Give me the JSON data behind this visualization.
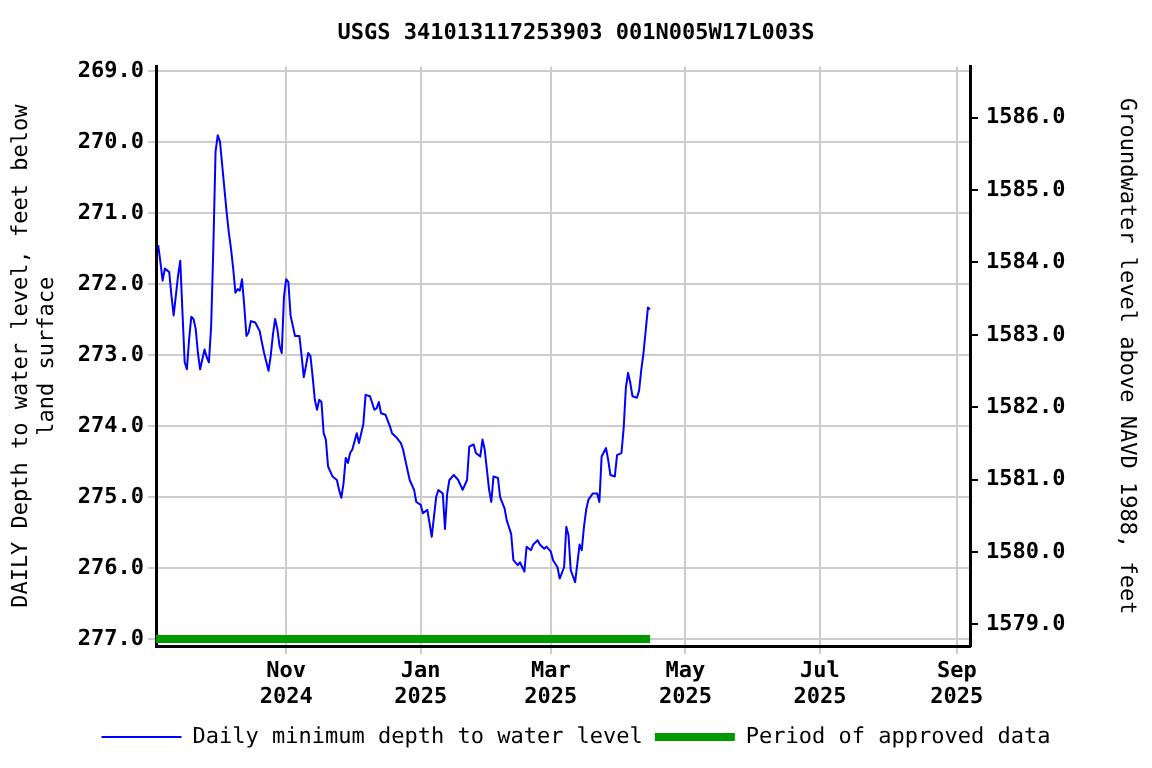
{
  "chart_data": {
    "type": "line",
    "title": "USGS 341013117253903 001N005W17L003S",
    "ylabel": "DAILY Depth to water level, feet below land surface",
    "y2label": "Groundwater level above NAVD 1988, feet",
    "xlim": [
      "2024-09-03",
      "2025-09-07"
    ],
    "xticks": [
      {
        "value": "2024-11-01",
        "label": "Nov 2024"
      },
      {
        "value": "2025-01-01",
        "label": "Jan 2025"
      },
      {
        "value": "2025-03-01",
        "label": "Mar 2025"
      },
      {
        "value": "2025-05-01",
        "label": "May 2025"
      },
      {
        "value": "2025-07-01",
        "label": "Jul 2025"
      },
      {
        "value": "2025-09-01",
        "label": "Sep 2025"
      }
    ],
    "ylim": [
      277.1,
      268.93
    ],
    "yticks": [
      {
        "value": 269,
        "label": "269.0"
      },
      {
        "value": 270,
        "label": "270.0"
      },
      {
        "value": 271,
        "label": "271.0"
      },
      {
        "value": 272,
        "label": "272.0"
      },
      {
        "value": 273,
        "label": "273.0"
      },
      {
        "value": 274,
        "label": "274.0"
      },
      {
        "value": 275,
        "label": "275.0"
      },
      {
        "value": 276,
        "label": "276.0"
      },
      {
        "value": 277,
        "label": "277.0"
      }
    ],
    "y2lim": [
      1578.7,
      1586.71
    ],
    "y2ticks": [
      {
        "value": 1579,
        "label": "1579.0"
      },
      {
        "value": 1580,
        "label": "1580.0"
      },
      {
        "value": 1581,
        "label": "1581.0"
      },
      {
        "value": 1582,
        "label": "1582.0"
      },
      {
        "value": 1583,
        "label": "1583.0"
      },
      {
        "value": 1584,
        "label": "1584.0"
      },
      {
        "value": 1585,
        "label": "1585.0"
      },
      {
        "value": 1586,
        "label": "1586.0"
      }
    ],
    "grid": true,
    "legend": "bottom",
    "marker": "none",
    "line_style": "solid",
    "series": [
      {
        "name": "Daily minimum depth to water level",
        "color": "#0000ff",
        "x": [
          "2024-09-04",
          "2024-09-05",
          "2024-09-06",
          "2024-09-07",
          "2024-09-09",
          "2024-09-10",
          "2024-09-11",
          "2024-09-12",
          "2024-09-13",
          "2024-09-14",
          "2024-09-15",
          "2024-09-16",
          "2024-09-17",
          "2024-09-18",
          "2024-09-19",
          "2024-09-20",
          "2024-09-21",
          "2024-09-22",
          "2024-09-23",
          "2024-09-24",
          "2024-09-25",
          "2024-09-26",
          "2024-09-27",
          "2024-09-28",
          "2024-09-29",
          "2024-09-30",
          "2024-10-01",
          "2024-10-02",
          "2024-10-03",
          "2024-10-04",
          "2024-10-05",
          "2024-10-06",
          "2024-10-07",
          "2024-10-08",
          "2024-10-09",
          "2024-10-10",
          "2024-10-11",
          "2024-10-12",
          "2024-10-13",
          "2024-10-14",
          "2024-10-15",
          "2024-10-16",
          "2024-10-18",
          "2024-10-20",
          "2024-10-21",
          "2024-10-22",
          "2024-10-24",
          "2024-10-25",
          "2024-10-26",
          "2024-10-27",
          "2024-10-28",
          "2024-10-29",
          "2024-10-30",
          "2024-10-31",
          "2024-11-01",
          "2024-11-02",
          "2024-11-03",
          "2024-11-05",
          "2024-11-07",
          "2024-11-08",
          "2024-11-09",
          "2024-11-10",
          "2024-11-11",
          "2024-11-12",
          "2024-11-13",
          "2024-11-14",
          "2024-11-15",
          "2024-11-16",
          "2024-11-17",
          "2024-11-18",
          "2024-11-19",
          "2024-11-20",
          "2024-11-22",
          "2024-11-24",
          "2024-11-25",
          "2024-11-26",
          "2024-11-27",
          "2024-11-28",
          "2024-11-29",
          "2024-11-30",
          "2024-12-01",
          "2024-12-03",
          "2024-12-04",
          "2024-12-06",
          "2024-12-07",
          "2024-12-09",
          "2024-12-11",
          "2024-12-12",
          "2024-12-13",
          "2024-12-14",
          "2024-12-16",
          "2024-12-18",
          "2024-12-19",
          "2024-12-21",
          "2024-12-23",
          "2024-12-24",
          "2024-12-26",
          "2024-12-27",
          "2024-12-29",
          "2024-12-30",
          "2025-01-01",
          "2025-01-02",
          "2025-01-04",
          "2025-01-05",
          "2025-01-06",
          "2025-01-08",
          "2025-01-09",
          "2025-01-11",
          "2025-01-12",
          "2025-01-13",
          "2025-01-14",
          "2025-01-16",
          "2025-01-18",
          "2025-01-20",
          "2025-01-22",
          "2025-01-23",
          "2025-01-25",
          "2025-01-26",
          "2025-01-28",
          "2025-01-29",
          "2025-01-30",
          "2025-02-01",
          "2025-02-02",
          "2025-02-03",
          "2025-02-05",
          "2025-02-06",
          "2025-02-08",
          "2025-02-09",
          "2025-02-11",
          "2025-02-12",
          "2025-02-14",
          "2025-02-15",
          "2025-02-17",
          "2025-02-18",
          "2025-02-20",
          "2025-02-21",
          "2025-02-23",
          "2025-02-24",
          "2025-02-26",
          "2025-02-27",
          "2025-03-01",
          "2025-03-02",
          "2025-03-04",
          "2025-03-05",
          "2025-03-07",
          "2025-03-08",
          "2025-03-09",
          "2025-03-10",
          "2025-03-12",
          "2025-03-13",
          "2025-03-14",
          "2025-03-15",
          "2025-03-16",
          "2025-03-17",
          "2025-03-18",
          "2025-03-20",
          "2025-03-22",
          "2025-03-23",
          "2025-03-24",
          "2025-03-26",
          "2025-03-27",
          "2025-03-28",
          "2025-03-30",
          "2025-03-31",
          "2025-04-02",
          "2025-04-03",
          "2025-04-04",
          "2025-04-05",
          "2025-04-06",
          "2025-04-07",
          "2025-04-09",
          "2025-04-10",
          "2025-04-11",
          "2025-04-12",
          "2025-04-14",
          "2025-04-15"
        ],
        "values": [
          271.45,
          271.69,
          271.95,
          271.78,
          271.83,
          272.16,
          272.44,
          272.16,
          271.88,
          271.67,
          272.4,
          273.1,
          273.2,
          272.78,
          272.46,
          272.49,
          272.63,
          272.97,
          273.2,
          273.06,
          272.92,
          273.03,
          273.1,
          272.59,
          271.48,
          270.13,
          269.9,
          269.99,
          270.32,
          270.65,
          270.98,
          271.27,
          271.5,
          271.78,
          272.12,
          272.07,
          272.09,
          271.93,
          272.3,
          272.73,
          272.68,
          272.52,
          272.54,
          272.66,
          272.82,
          272.97,
          273.22,
          273.01,
          272.71,
          272.49,
          272.63,
          272.87,
          272.97,
          272.18,
          271.93,
          271.97,
          272.44,
          272.73,
          272.73,
          273.01,
          273.31,
          273.15,
          272.97,
          273.01,
          273.3,
          273.63,
          273.77,
          273.63,
          273.66,
          274.1,
          274.19,
          274.57,
          274.71,
          274.76,
          274.9,
          275.01,
          274.81,
          274.45,
          274.52,
          274.38,
          274.33,
          274.1,
          274.24,
          273.97,
          273.56,
          273.58,
          273.77,
          273.75,
          273.66,
          273.82,
          273.84,
          274.0,
          274.1,
          274.16,
          274.24,
          274.33,
          274.62,
          274.76,
          274.9,
          275.07,
          275.11,
          275.23,
          275.18,
          275.37,
          275.56,
          275.0,
          274.9,
          274.95,
          275.45,
          274.95,
          274.76,
          274.69,
          274.76,
          274.9,
          274.76,
          274.29,
          274.26,
          274.38,
          274.43,
          274.19,
          274.33,
          274.9,
          275.07,
          274.71,
          274.73,
          275.0,
          275.16,
          275.33,
          275.52,
          275.89,
          275.96,
          275.92,
          276.05,
          275.7,
          275.75,
          275.67,
          275.61,
          275.67,
          275.73,
          275.7,
          275.77,
          275.89,
          275.99,
          276.15,
          275.99,
          275.42,
          275.54,
          276.03,
          276.2,
          275.94,
          275.67,
          275.75,
          275.42,
          275.18,
          275.04,
          274.95,
          274.95,
          275.07,
          274.43,
          274.31,
          274.48,
          274.69,
          274.71,
          274.41,
          274.38,
          274.03,
          273.46,
          273.25,
          273.39,
          273.58,
          273.6,
          273.5,
          273.2,
          272.97,
          272.33,
          272.35
        ]
      },
      {
        "name": "Period of approved data",
        "color": "#009900",
        "x": [
          "2024-09-03",
          "2025-04-15"
        ],
        "values": [
          277,
          277
        ]
      }
    ]
  }
}
